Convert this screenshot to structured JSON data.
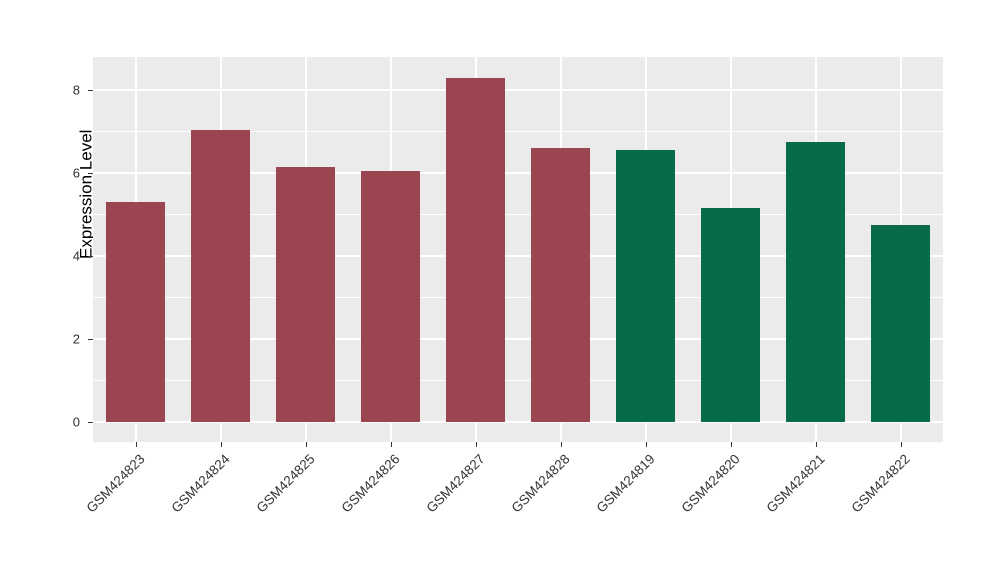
{
  "chart_data": {
    "type": "bar",
    "title": "",
    "xlabel": "",
    "ylabel": "Expression Level",
    "categories": [
      "GSM424823",
      "GSM424824",
      "GSM424825",
      "GSM424826",
      "GSM424827",
      "GSM424828",
      "GSM424819",
      "GSM424820",
      "GSM424821",
      "GSM424822"
    ],
    "values": [
      5.3,
      7.05,
      6.15,
      6.05,
      8.3,
      6.6,
      6.55,
      5.15,
      6.75,
      4.75
    ],
    "bar_colors": [
      "#9A4550",
      "#9A4550",
      "#9A4550",
      "#9A4550",
      "#9A4550",
      "#9A4550",
      "#066A4B",
      "#066A4B",
      "#066A4B",
      "#066A4B"
    ],
    "palette": {
      "maroon_group": "#9A4550",
      "green_group": "#066A4B"
    },
    "yticks": [
      0,
      2,
      4,
      6,
      8
    ],
    "minor_yticks": [
      1,
      3,
      5,
      7
    ],
    "axis_range": {
      "ymin": -0.48,
      "ymax": 8.8
    },
    "grid": true,
    "legend": "none",
    "panel_bg": "#EBEBEB",
    "gridline_color": "#FFFFFF",
    "bar_width_fraction": 0.7
  }
}
